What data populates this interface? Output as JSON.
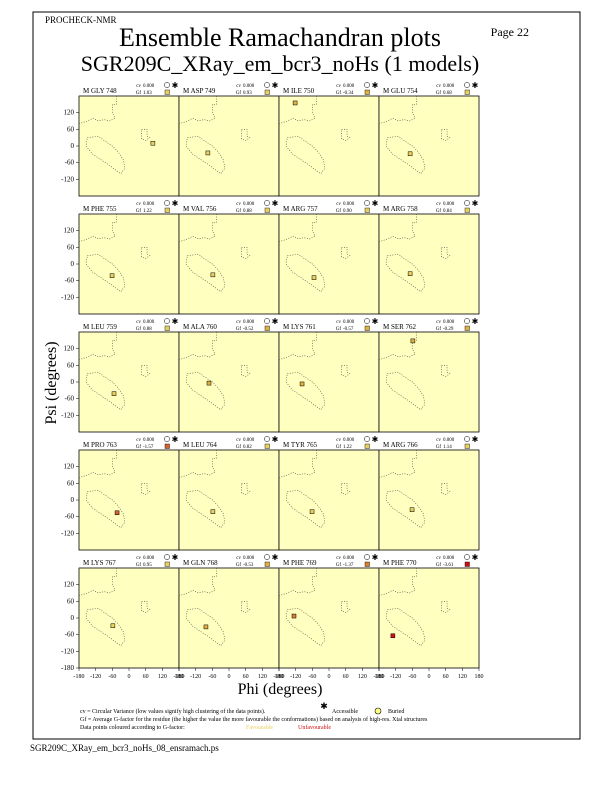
{
  "header": {
    "program": "PROCHECK-NMR",
    "page": "Page 22",
    "title": "Ensemble Ramachandran plots",
    "subtitle": "SGR209C_XRay_em_bcr3_noHs (1 models)"
  },
  "labels": {
    "cv": "cv",
    "gf": "Gf"
  },
  "axes": {
    "x_label": "Phi (degrees)",
    "y_label": "Psi (degrees)",
    "xlim": [
      -180,
      180
    ],
    "ylim": [
      -180,
      180
    ],
    "xticks": [
      -180,
      -120,
      -60,
      0,
      60,
      120,
      180
    ],
    "yticks": [
      -180,
      -120,
      -60,
      0,
      60,
      120
    ]
  },
  "panels": [
    {
      "residue": "M GLY 748",
      "cv": "0.000",
      "gf": "1.03",
      "phi": 86,
      "psi": 10,
      "color": "#e8d060"
    },
    {
      "residue": "M ASP 749",
      "cv": "0.000",
      "gf": "0.93",
      "phi": -76,
      "psi": -25,
      "color": "#e8d060"
    },
    {
      "residue": "M ILE 750",
      "cv": "0.000",
      "gf": "-0.34",
      "phi": -122,
      "psi": 155,
      "color": "#e0b040"
    },
    {
      "residue": "M GLU 754",
      "cv": "0.000",
      "gf": "0.68",
      "phi": -68,
      "psi": -28,
      "color": "#e8d060"
    },
    {
      "residue": "M PHE 755",
      "cv": "0.000",
      "gf": "1.22",
      "phi": -61,
      "psi": -42,
      "color": "#e8d060"
    },
    {
      "residue": "M VAL 756",
      "cv": "0.000",
      "gf": "0.88",
      "phi": -58,
      "psi": -39,
      "color": "#e8d060"
    },
    {
      "residue": "M ARG 757",
      "cv": "0.000",
      "gf": "0.90",
      "phi": -54,
      "psi": -49,
      "color": "#e8d060"
    },
    {
      "residue": "M ARG 758",
      "cv": "0.000",
      "gf": "0.84",
      "phi": -68,
      "psi": -35,
      "color": "#e8d060"
    },
    {
      "residue": "M LEU 759",
      "cv": "0.000",
      "gf": "0.88",
      "phi": -54,
      "psi": -42,
      "color": "#e8d060"
    },
    {
      "residue": "M ALA 760",
      "cv": "0.000",
      "gf": "-0.52",
      "phi": -72,
      "psi": -4,
      "color": "#e0b040"
    },
    {
      "residue": "M LYS 761",
      "cv": "0.000",
      "gf": "-0.57",
      "phi": -97,
      "psi": -7,
      "color": "#e0b040"
    },
    {
      "residue": "M SER 762",
      "cv": "0.000",
      "gf": "-0.29",
      "phi": -58,
      "psi": 148,
      "color": "#e0b040"
    },
    {
      "residue": "M PRO 763",
      "cv": "0.000",
      "gf": "-1.57",
      "phi": -43,
      "psi": -46,
      "color": "#d86030"
    },
    {
      "residue": "M LEU 764",
      "cv": "0.000",
      "gf": "0.82",
      "phi": -58,
      "psi": -42,
      "color": "#e8d060"
    },
    {
      "residue": "M TYR 765",
      "cv": "0.000",
      "gf": "1.22",
      "phi": -61,
      "psi": -42,
      "color": "#e8d060"
    },
    {
      "residue": "M ARG 766",
      "cv": "0.000",
      "gf": "1.14",
      "phi": -61,
      "psi": -35,
      "color": "#e8d060"
    },
    {
      "residue": "M LYS 767",
      "cv": "0.000",
      "gf": "0.95",
      "phi": -58,
      "psi": -28,
      "color": "#e8d060"
    },
    {
      "residue": "M GLN 768",
      "cv": "0.000",
      "gf": "-0.53",
      "phi": -83,
      "psi": -32,
      "color": "#e0b040"
    },
    {
      "residue": "M PHE 769",
      "cv": "0.000",
      "gf": "-1.37",
      "phi": -126,
      "psi": 7,
      "color": "#d88030"
    },
    {
      "residue": "M PHE 770",
      "cv": "0.000",
      "gf": "-3.61",
      "phi": -130,
      "psi": -64,
      "color": "#d01010"
    }
  ],
  "footer": {
    "cv_note": "cv = Circular Variance (low values signify high clustering of the data points).",
    "accessible": "Accessible",
    "buried": "Buried",
    "gf_note": "Gf = Average G-factor for the residue (the higher the value the more favourable the conformations) based on analysis of high-res. Xtal structures",
    "color_note": "Data points coloured according to G-factor:",
    "favourable": "Favourable",
    "unfavourable": "Unfavourable",
    "filename": "SGR209C_XRay_em_bcr3_noHs_08_ensramach.ps"
  }
}
